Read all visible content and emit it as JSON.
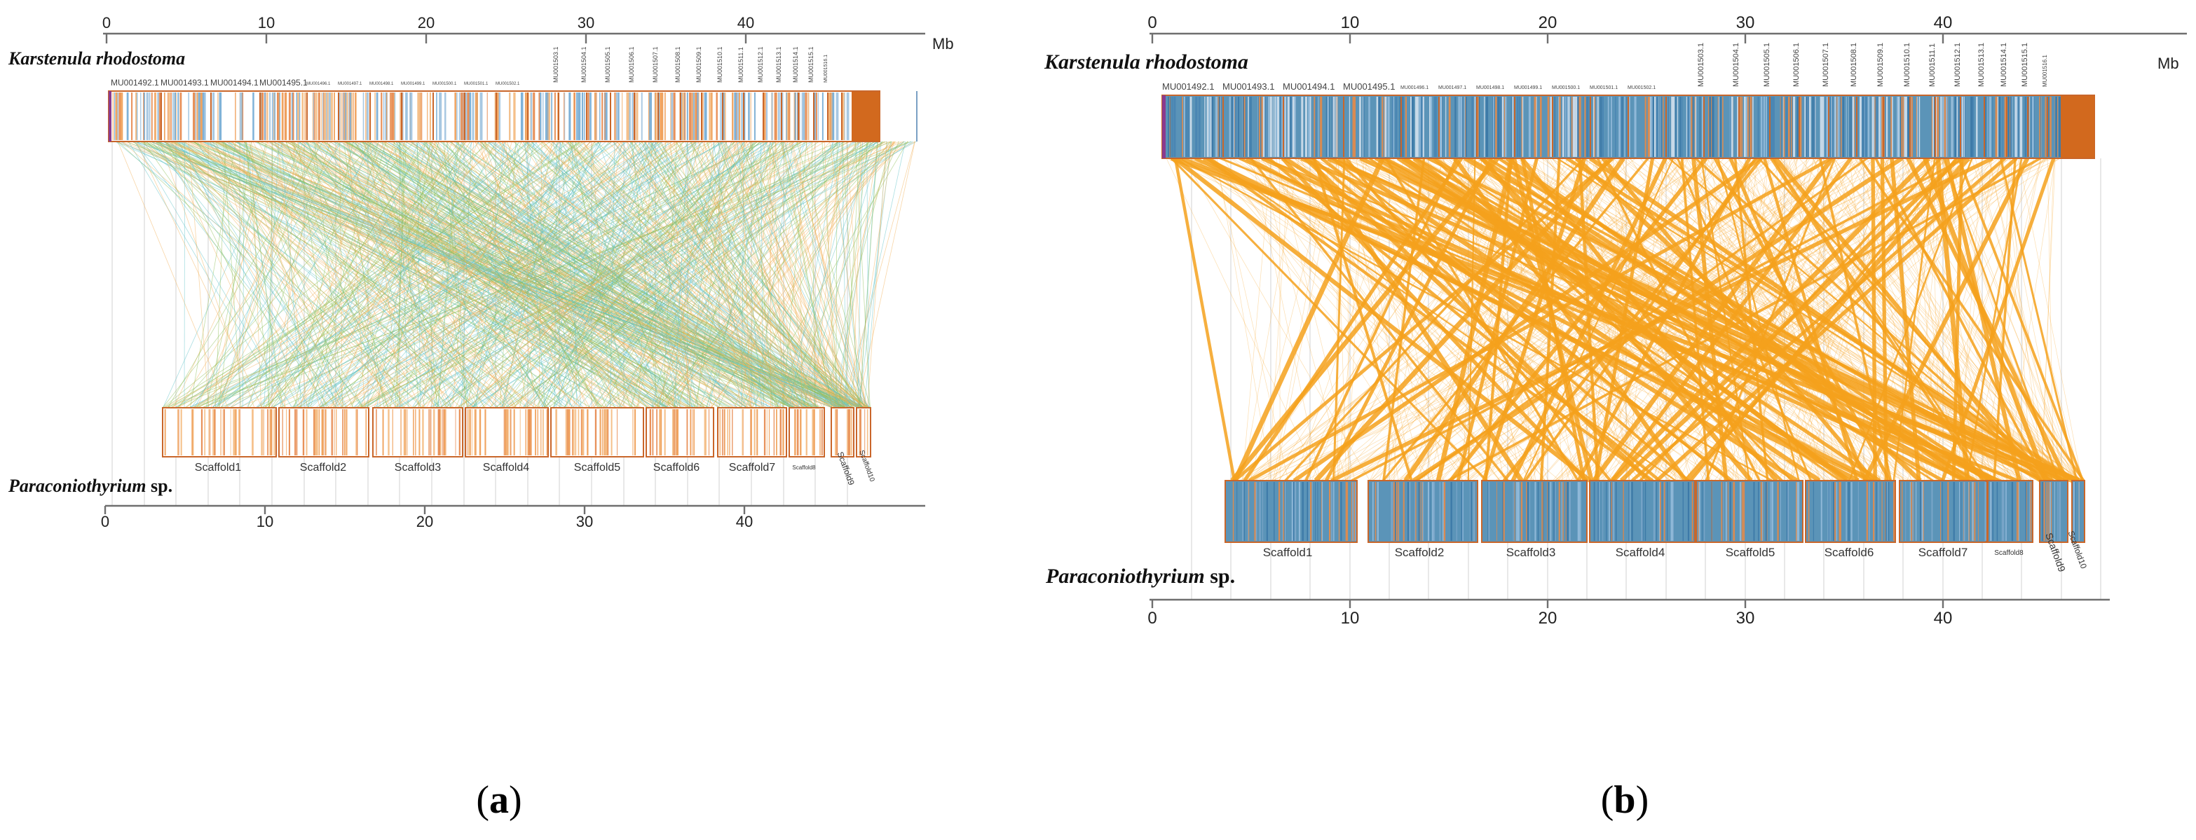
{
  "figure": {
    "panels": [
      {
        "id": "a",
        "label_open": "(",
        "label_letter": "a",
        "label_close": ")",
        "top_species": "Karstenula rhodostoma",
        "bottom_species_italic": "Paraconiothyrium",
        "bottom_species_suffix": " sp.",
        "axis_unit": "Mb",
        "top_ticks": [
          "0",
          "10",
          "20",
          "30",
          "40"
        ],
        "bottom_ticks": [
          "0",
          "10",
          "20",
          "30",
          "40"
        ],
        "top_contig_labels_horizontal": [
          "MU001492.1",
          "MU001493.1",
          "MU001494.1",
          "MU001495.1"
        ],
        "top_contig_labels_small": [
          "MU001496.1",
          "MU001497.1",
          "MU001498.1",
          "MU001499.1",
          "MU001500.1",
          "MU001501.1",
          "MU001502.1"
        ],
        "top_contig_labels_rotated": [
          "MU001503.1",
          "MU001504.1",
          "MU001505.1",
          "MU001506.1",
          "MU001507.1",
          "MU001508.1",
          "MU001509.1",
          "MU001510.1",
          "MU001511.1",
          "MU001512.1",
          "MU001513.1",
          "MU001514.1",
          "MU001515.1",
          "MU001516.1"
        ],
        "scaffolds": [
          "Scaffold1",
          "Scaffold2",
          "Scaffold3",
          "Scaffold4",
          "Scaffold5",
          "Scaffold6",
          "Scaffold7",
          "Scaffold8",
          "Scaffold9",
          "Scaffold10"
        ],
        "link_colors": [
          "#f2b25c",
          "#63c3c9",
          "#8fbf5a"
        ],
        "link_style": "thin multicolour synteny links"
      },
      {
        "id": "b",
        "label_open": "(",
        "label_letter": "b",
        "label_close": ")",
        "top_species": "Karstenula rhodostoma",
        "bottom_species_italic": "Paraconiothyrium",
        "bottom_species_suffix": " sp.",
        "axis_unit": "Mb",
        "top_ticks": [
          "0",
          "10",
          "20",
          "30",
          "40"
        ],
        "bottom_ticks": [
          "0",
          "10",
          "20",
          "30",
          "40"
        ],
        "top_contig_labels_horizontal": [
          "MU001492.1",
          "MU001493.1",
          "MU001494.1",
          "MU001495.1"
        ],
        "top_contig_labels_small": [
          "MU001496.1",
          "MU001497.1",
          "MU001498.1",
          "MU001499.1",
          "MU001500.1",
          "MU001501.1",
          "MU001502.1"
        ],
        "top_contig_labels_rotated": [
          "MU001503.1",
          "MU001504.1",
          "MU001505.1",
          "MU001506.1",
          "MU001507.1",
          "MU001508.1",
          "MU001509.1",
          "MU001510.1",
          "MU001511.1",
          "MU001512.1",
          "MU001513.1",
          "MU001514.1",
          "MU001515.1",
          "MU001516.1"
        ],
        "scaffolds": [
          "Scaffold1",
          "Scaffold2",
          "Scaffold3",
          "Scaffold4",
          "Scaffold5",
          "Scaffold6",
          "Scaffold7",
          "Scaffold8",
          "Scaffold9",
          "Scaffold10"
        ],
        "link_colors": [
          "#f5a11c"
        ],
        "link_style": "bold orange synteny bundles"
      }
    ]
  }
}
